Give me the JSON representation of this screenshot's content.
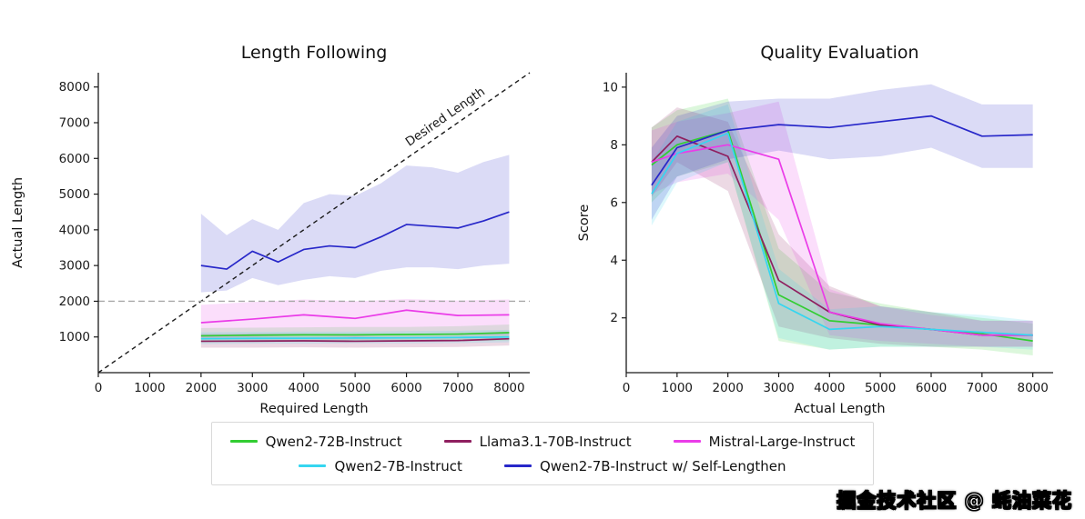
{
  "watermark": {
    "text": "掘金技术社区 @ 蚝油菜花"
  },
  "legend": {
    "rows": [
      [
        {
          "label": "Qwen2-72B-Instruct",
          "color": "#32cd32"
        },
        {
          "label": "Llama3.1-70B-Instruct",
          "color": "#8f1f5f"
        },
        {
          "label": "Mistral-Large-Instruct",
          "color": "#ea3ce8"
        }
      ],
      [
        {
          "label": "Qwen2-7B-Instruct",
          "color": "#35d6f0"
        },
        {
          "label": "Qwen2-7B-Instruct w/ Self-Lengthen",
          "color": "#2727c9"
        }
      ]
    ]
  },
  "chart_data": [
    {
      "type": "line",
      "title": "Length Following",
      "xlabel": "Required Length",
      "ylabel": "Actual Length",
      "xlim": [
        0,
        8400
      ],
      "ylim": [
        0,
        8400
      ],
      "xticks": [
        0,
        1000,
        2000,
        3000,
        4000,
        5000,
        6000,
        7000,
        8000
      ],
      "yticks": [
        1000,
        2000,
        3000,
        4000,
        5000,
        6000,
        7000,
        8000
      ],
      "grid": false,
      "reference_lines": [
        {
          "kind": "diagonal",
          "label": "Desired Length",
          "color": "#1a1a1a"
        },
        {
          "kind": "hline",
          "y": 2000,
          "color": "#a8a8a8"
        }
      ],
      "series": [
        {
          "name": "Qwen2-72B-Instruct",
          "color": "#32cd32",
          "x": [
            2000,
            3000,
            4000,
            5000,
            6000,
            7000,
            8000
          ],
          "y": [
            1030,
            1050,
            1060,
            1060,
            1070,
            1080,
            1120
          ],
          "lower": [
            850,
            860,
            870,
            870,
            880,
            880,
            900
          ],
          "upper": [
            1250,
            1260,
            1270,
            1280,
            1280,
            1300,
            1350
          ]
        },
        {
          "name": "Llama3.1-70B-Instruct",
          "color": "#8f1f5f",
          "x": [
            2000,
            3000,
            4000,
            5000,
            6000,
            7000,
            8000
          ],
          "y": [
            880,
            885,
            890,
            880,
            890,
            900,
            950
          ],
          "lower": [
            700,
            700,
            710,
            700,
            710,
            720,
            760
          ],
          "upper": [
            1080,
            1090,
            1090,
            1080,
            1090,
            1100,
            1150
          ]
        },
        {
          "name": "Mistral-Large-Instruct",
          "color": "#ea3ce8",
          "x": [
            2000,
            3000,
            4000,
            5000,
            6000,
            7000,
            8000
          ],
          "y": [
            1400,
            1500,
            1620,
            1520,
            1750,
            1600,
            1620
          ],
          "lower": [
            950,
            1000,
            1050,
            1000,
            1100,
            1050,
            1050
          ],
          "upper": [
            1900,
            1980,
            2050,
            2000,
            2060,
            2020,
            2050
          ]
        },
        {
          "name": "Qwen2-7B-Instruct",
          "color": "#35d6f0",
          "x": [
            2000,
            3000,
            4000,
            5000,
            6000,
            7000,
            8000
          ],
          "y": [
            950,
            960,
            965,
            970,
            975,
            985,
            1000
          ],
          "lower": [
            800,
            810,
            810,
            820,
            820,
            830,
            850
          ],
          "upper": [
            1130,
            1140,
            1150,
            1150,
            1160,
            1170,
            1200
          ]
        },
        {
          "name": "Qwen2-7B-Instruct w/ Self-Lengthen",
          "color": "#2727c9",
          "x": [
            2000,
            2500,
            3000,
            3500,
            4000,
            4500,
            5000,
            5500,
            6000,
            6500,
            7000,
            7500,
            8000
          ],
          "y": [
            3000,
            2900,
            3400,
            3100,
            3450,
            3550,
            3500,
            3800,
            4150,
            4100,
            4050,
            4250,
            4500
          ],
          "lower": [
            2250,
            2300,
            2650,
            2450,
            2600,
            2700,
            2650,
            2850,
            2950,
            2950,
            2900,
            3000,
            3050
          ],
          "upper": [
            4450,
            3850,
            4300,
            4000,
            4750,
            5000,
            4950,
            5300,
            5800,
            5750,
            5600,
            5900,
            6100
          ]
        }
      ]
    },
    {
      "type": "line",
      "title": "Quality Evaluation",
      "xlabel": "Actual Length",
      "ylabel": "Score",
      "xlim": [
        0,
        8400
      ],
      "ylim": [
        0.1,
        10.5
      ],
      "xticks": [
        0,
        1000,
        2000,
        3000,
        4000,
        5000,
        6000,
        7000,
        8000
      ],
      "yticks": [
        2,
        4,
        6,
        8,
        10
      ],
      "grid": false,
      "reference_lines": [],
      "series": [
        {
          "name": "Qwen2-72B-Instruct",
          "color": "#32cd32",
          "x": [
            500,
            1000,
            2000,
            3000,
            4000,
            5000,
            6000,
            7000,
            8000
          ],
          "y": [
            7.3,
            8.0,
            8.5,
            2.8,
            1.9,
            1.75,
            1.6,
            1.45,
            1.2
          ],
          "lower": [
            6.0,
            6.9,
            7.4,
            1.2,
            0.9,
            1.0,
            1.0,
            0.9,
            0.7
          ],
          "upper": [
            8.6,
            9.2,
            9.6,
            4.4,
            2.9,
            2.5,
            2.2,
            2.0,
            1.8
          ]
        },
        {
          "name": "Llama3.1-70B-Instruct",
          "color": "#8f1f5f",
          "x": [
            500,
            1000,
            2000,
            3000,
            4000,
            5000,
            6000,
            7000,
            8000
          ],
          "y": [
            7.4,
            8.3,
            7.6,
            3.3,
            2.2,
            1.75,
            1.6,
            1.4,
            1.4
          ],
          "lower": [
            6.2,
            7.4,
            6.4,
            1.7,
            1.3,
            1.1,
            1.0,
            1.0,
            1.0
          ],
          "upper": [
            8.6,
            9.3,
            8.8,
            4.9,
            3.1,
            2.4,
            2.2,
            1.9,
            1.9
          ]
        },
        {
          "name": "Mistral-Large-Instruct",
          "color": "#ea3ce8",
          "x": [
            500,
            1000,
            2000,
            3000,
            4000,
            5000,
            6000,
            7000,
            8000
          ],
          "y": [
            7.4,
            7.7,
            8.0,
            7.5,
            2.2,
            1.8,
            1.6,
            1.4,
            1.4
          ],
          "lower": [
            6.3,
            6.7,
            7.0,
            5.4,
            1.4,
            1.2,
            1.1,
            1.0,
            1.0
          ],
          "upper": [
            8.5,
            8.8,
            9.1,
            9.5,
            3.0,
            2.4,
            2.1,
            1.9,
            1.9
          ]
        },
        {
          "name": "Qwen2-7B-Instruct",
          "color": "#35d6f0",
          "x": [
            500,
            1000,
            2000,
            3000,
            4000,
            5000,
            6000,
            7000,
            8000
          ],
          "y": [
            6.3,
            7.7,
            8.4,
            2.5,
            1.6,
            1.7,
            1.6,
            1.5,
            1.4
          ],
          "lower": [
            5.2,
            6.7,
            7.4,
            1.3,
            0.9,
            1.0,
            1.0,
            1.0,
            0.9
          ],
          "upper": [
            7.4,
            8.8,
            9.4,
            3.7,
            2.3,
            2.4,
            2.2,
            2.1,
            1.9
          ]
        },
        {
          "name": "Qwen2-7B-Instruct w/ Self-Lengthen",
          "color": "#2727c9",
          "x": [
            500,
            1000,
            2000,
            3000,
            4000,
            5000,
            6000,
            7000,
            8000
          ],
          "y": [
            6.6,
            7.9,
            8.5,
            8.7,
            8.6,
            8.8,
            9.0,
            8.3,
            8.35
          ],
          "lower": [
            5.4,
            6.9,
            7.5,
            7.8,
            7.5,
            7.6,
            7.9,
            7.2,
            7.2
          ],
          "upper": [
            7.9,
            9.0,
            9.5,
            9.6,
            9.6,
            9.9,
            10.1,
            9.4,
            9.4
          ]
        }
      ]
    }
  ]
}
